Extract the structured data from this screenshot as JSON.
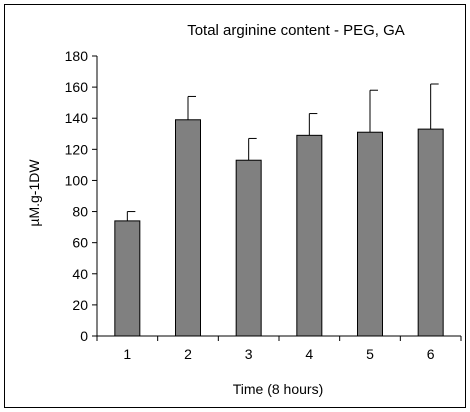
{
  "chart_data": {
    "type": "bar",
    "title": "Total arginine content - PEG, GA",
    "xlabel": "Time (8 hours)",
    "ylabel": "µM.g-1DW",
    "categories": [
      "1",
      "2",
      "3",
      "4",
      "5",
      "6"
    ],
    "values": [
      74,
      139,
      113,
      129,
      131,
      133
    ],
    "error_plus": [
      6,
      15,
      14,
      14,
      27,
      29
    ],
    "ylim": [
      0,
      180
    ],
    "yticks": [
      "0",
      "20",
      "40",
      "60",
      "80",
      "100",
      "120",
      "140",
      "160",
      "180"
    ],
    "grid": false,
    "legend": "none",
    "bar_color": "#808080",
    "bar_edge_color": "#000000",
    "axis_color": "#000000"
  }
}
